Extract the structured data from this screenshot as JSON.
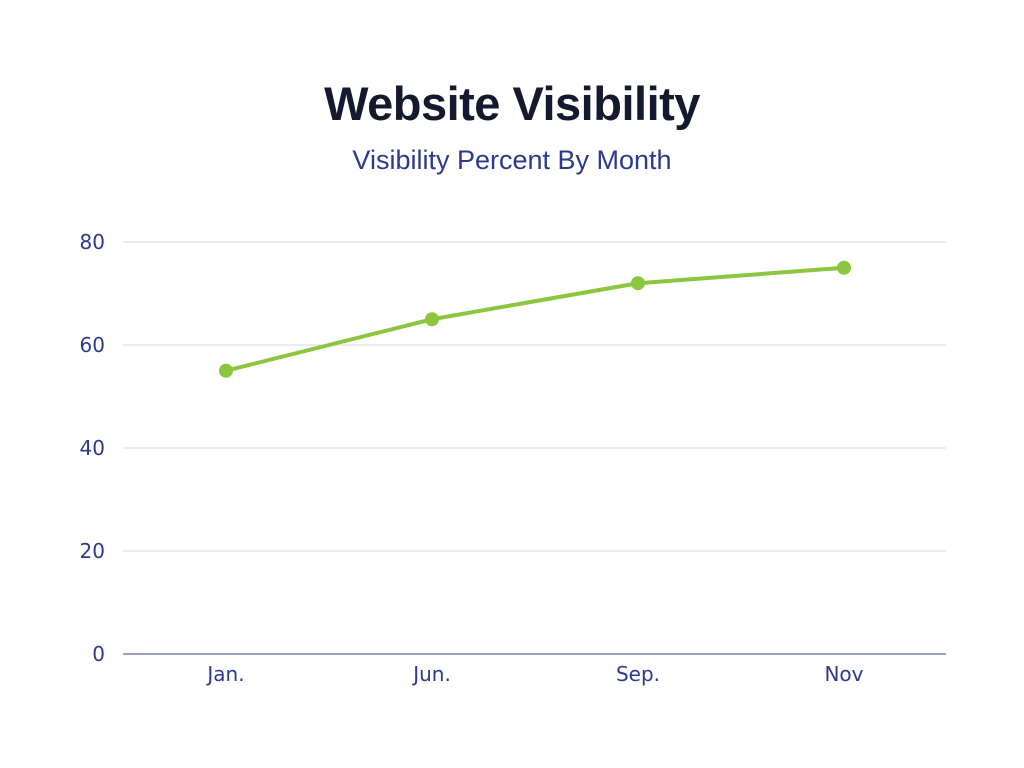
{
  "chart_data": {
    "type": "line",
    "title": "Website Visibility",
    "subtitle": "Visibility Percent By Month",
    "categories": [
      "Jan.",
      "Jun.",
      "Sep.",
      "Nov"
    ],
    "series": [
      {
        "values": [
          55,
          65,
          72,
          75
        ]
      }
    ],
    "ylim": [
      0,
      80
    ],
    "yticks": [
      0,
      20,
      40,
      60,
      80
    ],
    "grid": true,
    "colors": {
      "line": "#8cc63f",
      "grid": "#d5d9e6",
      "axis": "#5b67a8",
      "title": "#131a2e",
      "subtitle": "#2b3a8c",
      "ticks": "#2b3a8c"
    }
  }
}
